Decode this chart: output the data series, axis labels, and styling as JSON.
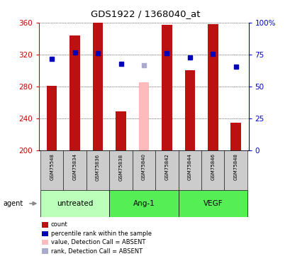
{
  "title": "GDS1922 / 1368040_at",
  "samples": [
    "GSM75548",
    "GSM75834",
    "GSM75836",
    "GSM75838",
    "GSM75840",
    "GSM75842",
    "GSM75844",
    "GSM75846",
    "GSM75848"
  ],
  "bar_values": [
    281,
    344,
    360,
    249,
    285,
    357,
    300,
    358,
    235
  ],
  "bar_absent": [
    false,
    false,
    false,
    false,
    true,
    false,
    false,
    false,
    false
  ],
  "bar_color_present": "#bb1111",
  "bar_color_absent": "#ffbbbb",
  "rank_values": [
    315,
    323,
    322,
    308,
    307,
    322,
    316,
    321,
    305
  ],
  "rank_absent": [
    false,
    false,
    false,
    false,
    true,
    false,
    false,
    false,
    false
  ],
  "rank_color_present": "#0000bb",
  "rank_color_absent": "#aaaacc",
  "ylim_left": [
    200,
    360
  ],
  "yticks_left": [
    200,
    240,
    280,
    320,
    360
  ],
  "yticks_right_labels": [
    "0",
    "25",
    "50",
    "75",
    "100%"
  ],
  "yticks_right_vals": [
    0,
    25,
    50,
    75,
    100
  ],
  "groups": [
    {
      "label": "untreated",
      "start": 0,
      "end": 3,
      "color": "#bbffbb"
    },
    {
      "label": "Ang-1",
      "start": 3,
      "end": 6,
      "color": "#55ee55"
    },
    {
      "label": "VEGF",
      "start": 6,
      "end": 9,
      "color": "#55ee55"
    }
  ],
  "agent_label": "agent",
  "left_axis_color": "#cc0000",
  "right_axis_color": "#0000cc",
  "bar_width": 0.45,
  "baseline": 200,
  "tick_area_bg": "#cccccc",
  "legend_items": [
    {
      "label": "count",
      "color": "#bb1111"
    },
    {
      "label": "percentile rank within the sample",
      "color": "#0000bb"
    },
    {
      "label": "value, Detection Call = ABSENT",
      "color": "#ffbbbb"
    },
    {
      "label": "rank, Detection Call = ABSENT",
      "color": "#aaaacc"
    }
  ]
}
